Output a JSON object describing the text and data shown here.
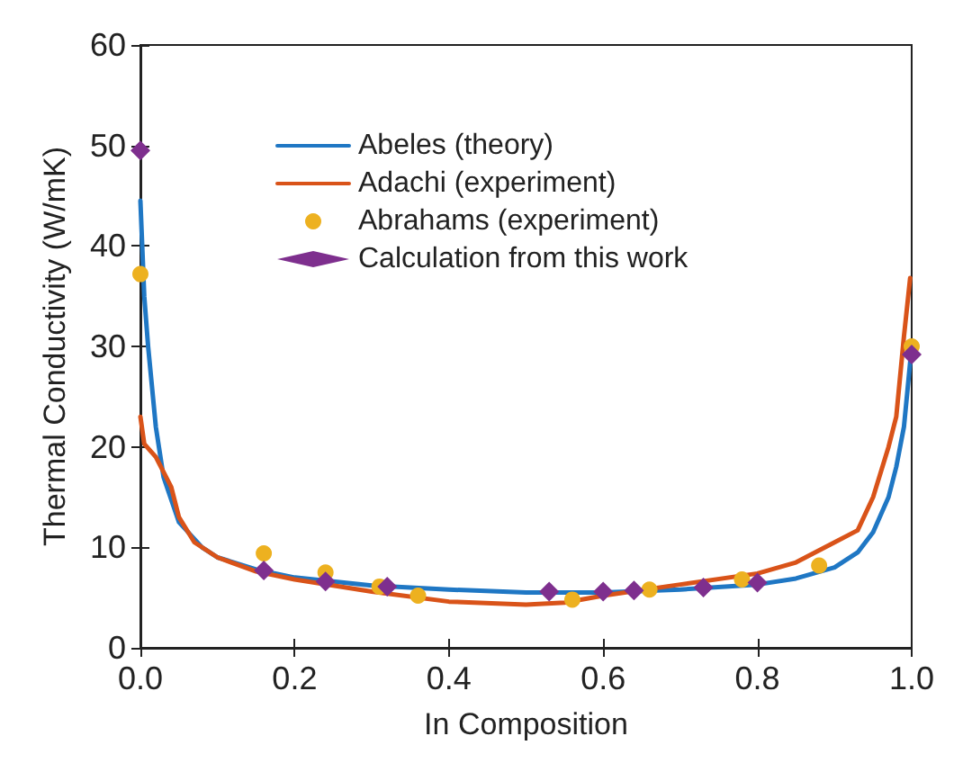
{
  "chart_data": {
    "type": "line",
    "xlabel": "In Composition",
    "ylabel": "Thermal Conductivity (W/mK)",
    "xlim": [
      0,
      1
    ],
    "ylim": [
      0,
      60
    ],
    "xticks": [
      {
        "value": 0,
        "label": "0.0"
      },
      0.2,
      0.4,
      0.6,
      0.8,
      {
        "value": 1,
        "label": "1.0"
      }
    ],
    "yticks": [
      0,
      10,
      20,
      30,
      40,
      50,
      60
    ],
    "grid": false,
    "legend": "top",
    "series": [
      {
        "name": "Abeles (theory)",
        "type": "line",
        "color": "#1f77c4",
        "marker": "none",
        "x": [
          0,
          0.005,
          0.01,
          0.02,
          0.03,
          0.05,
          0.08,
          0.1,
          0.15,
          0.2,
          0.3,
          0.4,
          0.5,
          0.6,
          0.7,
          0.8,
          0.85,
          0.9,
          0.93,
          0.95,
          0.97,
          0.98,
          0.99,
          0.995,
          1.0
        ],
        "values": [
          44.5,
          35,
          30,
          22,
          17,
          12.5,
          10,
          9,
          7.8,
          7,
          6.2,
          5.8,
          5.5,
          5.5,
          5.8,
          6.3,
          6.9,
          8,
          9.5,
          11.5,
          15,
          18,
          22,
          26,
          30
        ]
      },
      {
        "name": "Adachi (experiment)",
        "type": "line",
        "color": "#d95319",
        "marker": "none",
        "x": [
          0,
          0.005,
          0.02,
          0.04,
          0.05,
          0.07,
          0.1,
          0.15,
          0.2,
          0.3,
          0.4,
          0.5,
          0.55,
          0.6,
          0.7,
          0.8,
          0.85,
          0.9,
          0.93,
          0.95,
          0.97,
          0.98,
          0.99,
          0.998
        ],
        "values": [
          23,
          20.3,
          19,
          16,
          13,
          10.5,
          9,
          7.6,
          6.8,
          5.6,
          4.6,
          4.3,
          4.5,
          5.2,
          6.3,
          7.4,
          8.5,
          10.5,
          11.7,
          15,
          20,
          23,
          31,
          36.8
        ]
      },
      {
        "name": "Abrahams (experiment)",
        "type": "scatter",
        "color": "#edb120",
        "marker": "circle",
        "x": [
          0,
          0.16,
          0.24,
          0.31,
          0.36,
          0.56,
          0.66,
          0.78,
          0.88,
          1.0
        ],
        "values": [
          37.2,
          9.4,
          7.5,
          6.1,
          5.2,
          4.8,
          5.8,
          6.8,
          8.2,
          30
        ]
      },
      {
        "name": "Calculation from this work",
        "type": "scatter",
        "color": "#7e2f8e",
        "marker": "diamond",
        "x": [
          0,
          0.16,
          0.24,
          0.32,
          0.53,
          0.6,
          0.64,
          0.73,
          0.8,
          1.0
        ],
        "values": [
          49.5,
          7.7,
          6.6,
          6.1,
          5.6,
          5.6,
          5.7,
          6.0,
          6.5,
          29.2
        ]
      }
    ]
  }
}
